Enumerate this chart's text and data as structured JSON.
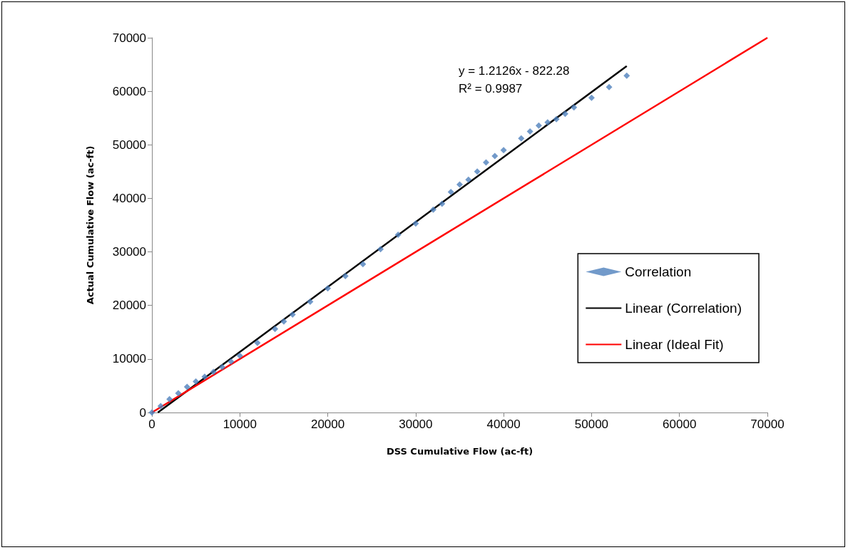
{
  "chart_data": {
    "type": "scatter",
    "xlabel": "DSS Cumulative Flow (ac-ft)",
    "ylabel": "Actual Cumulative Flow (ac-ft)",
    "annotations": [
      "y = 1.2126x - 822.28",
      "R² = 0.9987"
    ],
    "xlim": [
      0,
      70000
    ],
    "xticks": [
      0,
      10000,
      20000,
      30000,
      40000,
      50000,
      60000,
      70000
    ],
    "ylim": [
      0,
      70000
    ],
    "yticks": [
      0,
      10000,
      20000,
      30000,
      40000,
      50000,
      60000,
      70000
    ],
    "grid": false,
    "legend": "right",
    "series": [
      {
        "name": "Correlation",
        "marker": "diamond",
        "color": "#4f81bd",
        "x": [
          0,
          1000,
          2000,
          3000,
          4000,
          5000,
          6000,
          7000,
          8000,
          9000,
          10000,
          12000,
          14000,
          15000,
          16000,
          18000,
          20000,
          22000,
          24000,
          26000,
          28000,
          30000,
          32000,
          33000,
          34000,
          35000,
          36000,
          37000,
          38000,
          39000,
          40000,
          42000,
          43000,
          44000,
          45000,
          46000,
          47000,
          48000,
          50000,
          52000,
          54000
        ],
        "values": [
          0,
          1200,
          2500,
          3600,
          4800,
          5800,
          6700,
          7600,
          8500,
          9500,
          10600,
          13000,
          15600,
          17000,
          18300,
          20700,
          23200,
          25500,
          27700,
          30500,
          33200,
          35300,
          37900,
          39000,
          41200,
          42600,
          43500,
          45000,
          46700,
          47900,
          49000,
          51200,
          52500,
          53600,
          54200,
          54800,
          55800,
          57000,
          58800,
          60800,
          62900
        ]
      },
      {
        "name": "Linear (Correlation)",
        "type": "line",
        "marker": "none",
        "color": "#000000",
        "x": [
          678,
          54000
        ],
        "values": [
          0,
          64700
        ]
      },
      {
        "name": "Linear (Ideal Fit)",
        "type": "line",
        "marker": "none",
        "color": "#ff0000",
        "x": [
          0,
          70000
        ],
        "values": [
          0,
          70000
        ]
      }
    ]
  }
}
